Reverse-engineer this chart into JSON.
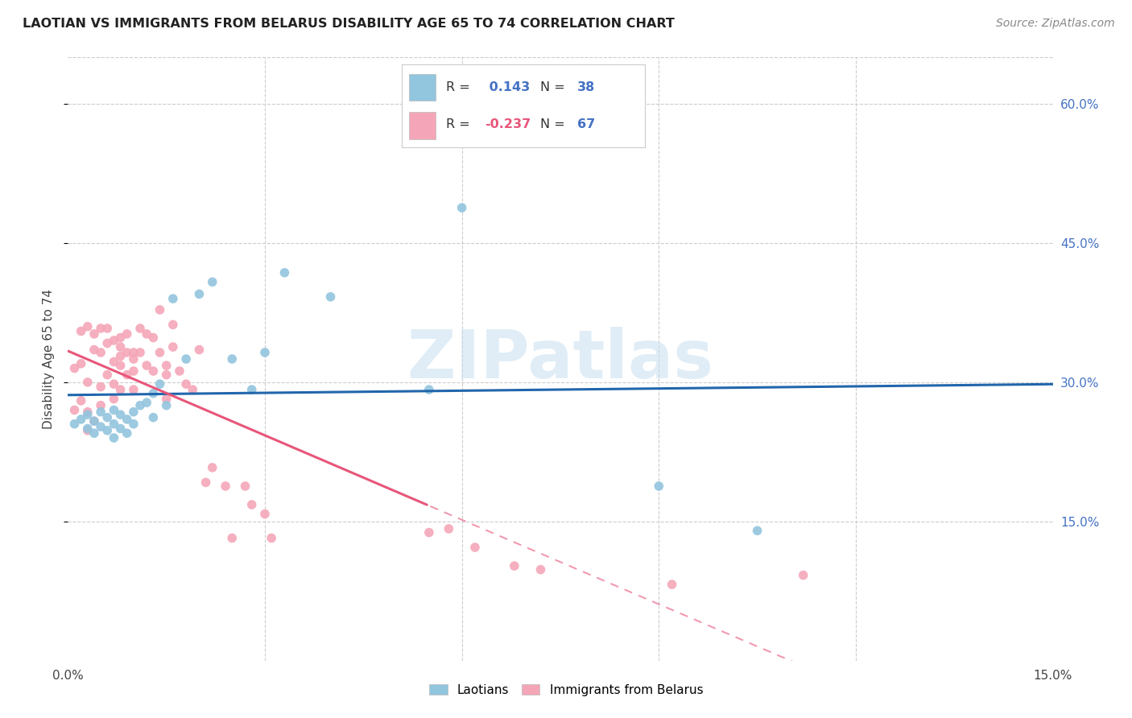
{
  "title": "LAOTIAN VS IMMIGRANTS FROM BELARUS DISABILITY AGE 65 TO 74 CORRELATION CHART",
  "source": "Source: ZipAtlas.com",
  "ylabel": "Disability Age 65 to 74",
  "xlim": [
    0.0,
    0.15
  ],
  "ylim": [
    0.0,
    0.65
  ],
  "laotian_R": 0.143,
  "laotian_N": 38,
  "belarus_R": -0.237,
  "belarus_N": 67,
  "blue_color": "#92c5de",
  "pink_color": "#f4a6b8",
  "blue_line_color": "#2166ac",
  "pink_line_color": "#e8567a",
  "watermark": "ZIPatlas",
  "laotian_scatter_x": [
    0.001,
    0.002,
    0.003,
    0.003,
    0.004,
    0.004,
    0.005,
    0.005,
    0.006,
    0.006,
    0.007,
    0.007,
    0.007,
    0.008,
    0.008,
    0.009,
    0.009,
    0.01,
    0.01,
    0.011,
    0.012,
    0.013,
    0.013,
    0.014,
    0.015,
    0.016,
    0.018,
    0.02,
    0.022,
    0.025,
    0.028,
    0.03,
    0.033,
    0.04,
    0.055,
    0.06,
    0.09,
    0.105
  ],
  "laotian_scatter_y": [
    0.255,
    0.26,
    0.25,
    0.265,
    0.258,
    0.245,
    0.268,
    0.252,
    0.262,
    0.248,
    0.27,
    0.255,
    0.24,
    0.265,
    0.25,
    0.26,
    0.245,
    0.268,
    0.255,
    0.275,
    0.278,
    0.288,
    0.262,
    0.298,
    0.275,
    0.39,
    0.325,
    0.395,
    0.408,
    0.325,
    0.292,
    0.332,
    0.418,
    0.392,
    0.292,
    0.488,
    0.188,
    0.14
  ],
  "belarus_scatter_x": [
    0.001,
    0.001,
    0.002,
    0.002,
    0.002,
    0.003,
    0.003,
    0.003,
    0.003,
    0.004,
    0.004,
    0.004,
    0.005,
    0.005,
    0.005,
    0.005,
    0.006,
    0.006,
    0.006,
    0.007,
    0.007,
    0.007,
    0.007,
    0.008,
    0.008,
    0.008,
    0.008,
    0.008,
    0.009,
    0.009,
    0.009,
    0.01,
    0.01,
    0.01,
    0.01,
    0.011,
    0.011,
    0.012,
    0.012,
    0.013,
    0.013,
    0.014,
    0.014,
    0.015,
    0.015,
    0.015,
    0.016,
    0.016,
    0.017,
    0.018,
    0.019,
    0.02,
    0.021,
    0.022,
    0.024,
    0.025,
    0.027,
    0.028,
    0.03,
    0.031,
    0.055,
    0.058,
    0.062,
    0.068,
    0.072,
    0.092,
    0.112
  ],
  "belarus_scatter_y": [
    0.315,
    0.27,
    0.355,
    0.32,
    0.28,
    0.36,
    0.3,
    0.268,
    0.248,
    0.352,
    0.335,
    0.258,
    0.358,
    0.332,
    0.295,
    0.275,
    0.358,
    0.342,
    0.308,
    0.345,
    0.322,
    0.298,
    0.282,
    0.348,
    0.338,
    0.328,
    0.318,
    0.292,
    0.352,
    0.332,
    0.308,
    0.332,
    0.325,
    0.312,
    0.292,
    0.358,
    0.332,
    0.352,
    0.318,
    0.348,
    0.312,
    0.378,
    0.332,
    0.308,
    0.318,
    0.282,
    0.362,
    0.338,
    0.312,
    0.298,
    0.292,
    0.335,
    0.192,
    0.208,
    0.188,
    0.132,
    0.188,
    0.168,
    0.158,
    0.132,
    0.138,
    0.142,
    0.122,
    0.102,
    0.098,
    0.082,
    0.092
  ]
}
